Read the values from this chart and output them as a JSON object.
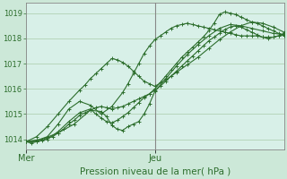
{
  "title": "",
  "xlabel": "Pression niveau de la mer( hPa )",
  "bg_color": "#cce8d8",
  "plot_bg_color": "#d8f0e8",
  "grid_color": "#aaccaa",
  "line_color": "#2d6e2d",
  "axis_color": "#888888",
  "text_color": "#2d6e2d",
  "ylim": [
    1013.6,
    1019.4
  ],
  "xlim": [
    0,
    96
  ],
  "yticks": [
    1014,
    1015,
    1016,
    1017,
    1018,
    1019
  ],
  "xtick_positions": [
    0,
    48
  ],
  "xtick_labels": [
    "Mer",
    "Jeu"
  ],
  "vline_x": 48,
  "series": [
    {
      "x": [
        0,
        2,
        4,
        6,
        8,
        10,
        12,
        14,
        16,
        18,
        20,
        22,
        24,
        26,
        28,
        30,
        32,
        34,
        36,
        38,
        40,
        42,
        44,
        46,
        48,
        50,
        52,
        54,
        56,
        58,
        60,
        62,
        64,
        66,
        68,
        70,
        72,
        74,
        76,
        78,
        80,
        82,
        84,
        86,
        88,
        90,
        92,
        94,
        96
      ],
      "y": [
        1013.9,
        1013.85,
        1013.9,
        1013.95,
        1014.05,
        1014.1,
        1014.25,
        1014.4,
        1014.6,
        1014.75,
        1014.95,
        1015.05,
        1015.15,
        1015.25,
        1015.3,
        1015.25,
        1015.2,
        1015.25,
        1015.3,
        1015.4,
        1015.5,
        1015.6,
        1015.7,
        1015.8,
        1015.95,
        1016.1,
        1016.3,
        1016.5,
        1016.7,
        1016.9,
        1017.1,
        1017.3,
        1017.5,
        1017.7,
        1017.9,
        1018.05,
        1018.2,
        1018.35,
        1018.45,
        1018.5,
        1018.45,
        1018.35,
        1018.25,
        1018.15,
        1018.05,
        1018.0,
        1018.05,
        1018.1,
        1018.2
      ],
      "marker": "+"
    },
    {
      "x": [
        0,
        4,
        8,
        12,
        16,
        20,
        24,
        26,
        28,
        30,
        32,
        34,
        36,
        38,
        40,
        42,
        44,
        46,
        48,
        50,
        52,
        54,
        56,
        58,
        60,
        62,
        64,
        66,
        68,
        70,
        72,
        74,
        76,
        78,
        80,
        82,
        84,
        86,
        88,
        90,
        92,
        94,
        96
      ],
      "y": [
        1013.9,
        1013.9,
        1014.0,
        1014.3,
        1014.7,
        1015.05,
        1015.2,
        1015.0,
        1014.85,
        1014.7,
        1014.65,
        1014.75,
        1014.9,
        1015.05,
        1015.25,
        1015.45,
        1015.65,
        1015.8,
        1016.0,
        1016.25,
        1016.5,
        1016.75,
        1017.0,
        1017.25,
        1017.45,
        1017.65,
        1017.85,
        1018.05,
        1018.3,
        1018.6,
        1018.95,
        1019.05,
        1019.0,
        1018.95,
        1018.85,
        1018.75,
        1018.65,
        1018.6,
        1018.5,
        1018.4,
        1018.3,
        1018.2,
        1018.1
      ],
      "marker": "+"
    },
    {
      "x": [
        0,
        4,
        8,
        12,
        16,
        20,
        24,
        28,
        32,
        36,
        38,
        40,
        42,
        44,
        46,
        48,
        50,
        52,
        54,
        56,
        58,
        60,
        62,
        64,
        66,
        68,
        70,
        72,
        74,
        76,
        78,
        80,
        82,
        84,
        86,
        88,
        90,
        92,
        94,
        96
      ],
      "y": [
        1013.9,
        1013.95,
        1014.1,
        1014.6,
        1015.2,
        1015.5,
        1015.35,
        1015.0,
        1015.3,
        1015.85,
        1016.2,
        1016.6,
        1017.0,
        1017.4,
        1017.7,
        1017.95,
        1018.1,
        1018.25,
        1018.4,
        1018.5,
        1018.55,
        1018.6,
        1018.55,
        1018.5,
        1018.45,
        1018.4,
        1018.35,
        1018.3,
        1018.25,
        1018.2,
        1018.15,
        1018.1,
        1018.1,
        1018.1,
        1018.1,
        1018.05,
        1018.05,
        1018.05,
        1018.1,
        1018.15
      ],
      "marker": "+"
    },
    {
      "x": [
        0,
        6,
        12,
        18,
        24,
        28,
        30,
        32,
        34,
        36,
        38,
        40,
        42,
        44,
        46,
        48,
        52,
        56,
        60,
        64,
        68,
        72,
        76,
        80,
        84,
        88,
        92,
        96
      ],
      "y": [
        1013.9,
        1014.0,
        1014.25,
        1014.6,
        1015.15,
        1015.1,
        1014.9,
        1014.55,
        1014.4,
        1014.35,
        1014.5,
        1014.6,
        1014.7,
        1015.0,
        1015.4,
        1015.9,
        1016.4,
        1016.9,
        1017.35,
        1017.75,
        1018.1,
        1018.4,
        1018.55,
        1018.5,
        1018.4,
        1018.3,
        1018.2,
        1018.15
      ],
      "marker": "+"
    },
    {
      "x": [
        0,
        4,
        8,
        12,
        16,
        20,
        22,
        24,
        26,
        28,
        30,
        32,
        34,
        36,
        38,
        40,
        42,
        44,
        46,
        48,
        52,
        56,
        60,
        64,
        68,
        72,
        76,
        80,
        84,
        88,
        92,
        96
      ],
      "y": [
        1013.9,
        1014.1,
        1014.5,
        1015.0,
        1015.5,
        1015.95,
        1016.15,
        1016.4,
        1016.6,
        1016.8,
        1017.0,
        1017.2,
        1017.15,
        1017.05,
        1016.9,
        1016.7,
        1016.5,
        1016.3,
        1016.2,
        1016.1,
        1016.35,
        1016.65,
        1016.95,
        1017.25,
        1017.6,
        1017.95,
        1018.25,
        1018.5,
        1018.65,
        1018.6,
        1018.45,
        1018.25
      ],
      "marker": "+"
    }
  ]
}
